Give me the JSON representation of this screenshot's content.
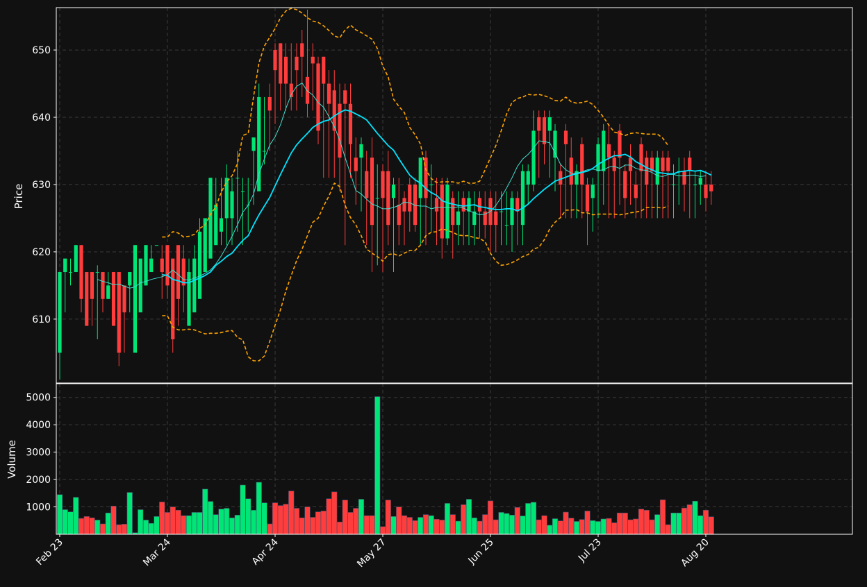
{
  "colors": {
    "background": "#111111",
    "frame": "#ffffff",
    "grid": "#3a3a3a",
    "up": "#00e676",
    "down": "#ff3d3d",
    "ma_fast": "#40e0d0",
    "ma_slow": "#00e5ff",
    "bands": "#ffa500",
    "text": "#ffffff"
  },
  "chart_data": {
    "type": "candlestick",
    "grid": true,
    "price_axis": {
      "label": "Price",
      "ticks": [
        610,
        620,
        630,
        640,
        650
      ],
      "ylim": [
        600.5,
        656.3
      ]
    },
    "volume_axis": {
      "label": "Volume",
      "ticks": [
        1000,
        2000,
        3000,
        4000,
        5000
      ],
      "ylim": [
        0,
        5500
      ]
    },
    "x_ticks": [
      {
        "label": "Feb 23",
        "index": 0
      },
      {
        "label": "Mar 24",
        "index": 20
      },
      {
        "label": "Apr 24",
        "index": 40
      },
      {
        "label": "May 27",
        "index": 60
      },
      {
        "label": "Jun 25",
        "index": 80
      },
      {
        "label": "Jul 23",
        "index": 100
      },
      {
        "label": "Aug 20",
        "index": 120
      }
    ],
    "candles": {
      "open": [
        605,
        617,
        617,
        617,
        621,
        617,
        617,
        617,
        617,
        613,
        617,
        617,
        615,
        615,
        605,
        611,
        615,
        617,
        621,
        619,
        621,
        619,
        621,
        619,
        609,
        611,
        613,
        617,
        619,
        621,
        623,
        625,
        625,
        631,
        629,
        627,
        635,
        629,
        635,
        643,
        650,
        651,
        649,
        645,
        649,
        651,
        646,
        649,
        648,
        649,
        645,
        644,
        642,
        644,
        642,
        634,
        634,
        632,
        634,
        628,
        632,
        632,
        628,
        627,
        628,
        630,
        630,
        628,
        634,
        630,
        628,
        630,
        622,
        628,
        624,
        628,
        626,
        624,
        628,
        626,
        628,
        626,
        626,
        624,
        624,
        628,
        624,
        630,
        630,
        640,
        640,
        638,
        634,
        632,
        638,
        634,
        630,
        636,
        630,
        628,
        632,
        632,
        636,
        634,
        638,
        632,
        634,
        630,
        636,
        634,
        634,
        630,
        634,
        634,
        630,
        632,
        632,
        634,
        630,
        630,
        630,
        630
      ],
      "close": [
        617,
        619,
        617,
        621,
        613,
        609,
        613,
        617,
        613,
        615,
        609,
        605,
        611,
        617,
        621,
        619,
        621,
        619,
        621,
        617,
        615,
        607,
        613,
        615,
        617,
        619,
        623,
        625,
        631,
        627,
        625,
        631,
        629,
        631,
        629,
        627,
        637,
        643,
        635,
        641,
        647,
        645,
        645,
        643,
        647,
        649,
        642,
        648,
        638,
        645,
        642,
        638,
        634,
        642,
        636,
        632,
        636,
        628,
        624,
        628,
        628,
        624,
        630,
        624,
        626,
        626,
        624,
        634,
        628,
        630,
        626,
        622,
        630,
        624,
        626,
        626,
        628,
        626,
        626,
        624,
        624,
        624,
        626,
        624,
        628,
        626,
        632,
        632,
        638,
        638,
        636,
        640,
        638,
        630,
        636,
        630,
        632,
        630,
        626,
        630,
        636,
        638,
        634,
        632,
        634,
        628,
        632,
        628,
        632,
        630,
        632,
        634,
        632,
        632,
        630,
        632,
        630,
        632,
        630,
        631,
        628,
        629
      ],
      "high": [
        617,
        619,
        619,
        621,
        621,
        617,
        617,
        618,
        617,
        617,
        617,
        617,
        615,
        617,
        621,
        619,
        621,
        621,
        621,
        621,
        621,
        619,
        621,
        621,
        619,
        621,
        625,
        625,
        631,
        631,
        631,
        633,
        631,
        635,
        631,
        631,
        637,
        645,
        643,
        645,
        651,
        651,
        651,
        651,
        651,
        653,
        656,
        651,
        649,
        649,
        647,
        647,
        645,
        645,
        645,
        637,
        637,
        635,
        637,
        633,
        633,
        635,
        631,
        631,
        629,
        631,
        631,
        631,
        635,
        633,
        631,
        631,
        631,
        629,
        629,
        629,
        629,
        629,
        629,
        629,
        629,
        629,
        629,
        629,
        629,
        629,
        633,
        633,
        641,
        641,
        641,
        641,
        639,
        633,
        639,
        637,
        633,
        637,
        631,
        631,
        637,
        639,
        639,
        635,
        639,
        633,
        636,
        632,
        637,
        635,
        635,
        635,
        635,
        635,
        633,
        634,
        634,
        635,
        632,
        632,
        632,
        632
      ],
      "low": [
        601,
        611,
        615,
        617,
        611,
        609,
        609,
        607,
        611,
        613,
        609,
        603,
        605,
        611,
        613,
        619,
        617,
        619,
        621,
        613,
        613,
        605,
        609,
        611,
        613,
        615,
        617,
        623,
        623,
        625,
        621,
        621,
        621,
        623,
        621,
        623,
        627,
        633,
        633,
        635,
        639,
        641,
        641,
        641,
        641,
        643,
        640,
        641,
        636,
        631,
        631,
        631,
        629,
        621,
        631,
        627,
        626,
        621,
        617,
        618,
        617,
        621,
        617,
        621,
        621,
        623,
        623,
        621,
        621,
        623,
        621,
        619,
        621,
        619,
        621,
        621,
        621,
        621,
        622,
        622,
        620,
        620,
        621,
        621,
        620,
        621,
        621,
        627,
        629,
        631,
        633,
        631,
        629,
        625,
        625,
        625,
        625,
        625,
        621,
        623,
        625,
        627,
        625,
        625,
        627,
        625,
        627,
        625,
        625,
        625,
        625,
        625,
        625,
        625,
        625,
        627,
        626,
        625,
        625,
        627,
        626,
        627
      ],
      "volume": [
        1450,
        900,
        820,
        1350,
        580,
        650,
        600,
        520,
        380,
        780,
        1030,
        350,
        370,
        1530,
        60,
        900,
        520,
        400,
        650,
        1180,
        800,
        1000,
        880,
        680,
        680,
        800,
        800,
        1650,
        1200,
        720,
        920,
        950,
        600,
        700,
        1800,
        1300,
        880,
        1900,
        1150,
        380,
        1150,
        1050,
        1100,
        1580,
        950,
        600,
        1000,
        620,
        820,
        850,
        1300,
        1550,
        450,
        1250,
        800,
        950,
        1280,
        680,
        680,
        5030,
        280,
        1250,
        650,
        1000,
        680,
        620,
        500,
        620,
        720,
        680,
        550,
        520,
        1130,
        720,
        480,
        1080,
        1280,
        600,
        480,
        720,
        1220,
        530,
        800,
        760,
        700,
        980,
        670,
        1130,
        1170,
        530,
        680,
        330,
        570,
        490,
        810,
        590,
        470,
        540,
        850,
        500,
        470,
        560,
        580,
        420,
        780,
        780,
        530,
        560,
        920,
        880,
        530,
        720,
        1260,
        350,
        780,
        780,
        960,
        1080,
        1210,
        680,
        880,
        640
      ]
    },
    "ma_fast": {
      "start": 7,
      "values": [
        615.9,
        615.6,
        615.4,
        615.1,
        615.2,
        614.9,
        614.6,
        614.8,
        615.4,
        615.6,
        615.9,
        616.1,
        616.3,
        616.6,
        617.3,
        616.6,
        615.9,
        615.8,
        616.1,
        616.4,
        616.8,
        617.3,
        618.2,
        619.4,
        620.8,
        622.3,
        624.0,
        625.9,
        626.9,
        628.6,
        631.6,
        633.8,
        635.9,
        637.1,
        638.9,
        641.3,
        643.4,
        644.6,
        645.1,
        643.9,
        643.3,
        642.2,
        641.5,
        640.1,
        638.6,
        636.6,
        634.0,
        631.6,
        629.1,
        628.6,
        627.8,
        627.1,
        626.8,
        626.4,
        626.4,
        626.6,
        626.9,
        627.4,
        627.3,
        626.9,
        626.8,
        626.8,
        626.4,
        626.6,
        626.6,
        626.6,
        626.5,
        626.7,
        626.5,
        626.1,
        625.8,
        625.5,
        625.6,
        626.0,
        626.9,
        628.1,
        629.5,
        631.0,
        632.7,
        633.8,
        634.5,
        635.4,
        636.5,
        636.4,
        636.2,
        634.7,
        633.0,
        632.2,
        631.7,
        631.7,
        631.9,
        632.2,
        632.3,
        632.1,
        632.2,
        632.6,
        632.7,
        632.4,
        632.9,
        632.9,
        632.4,
        632.2,
        632.1,
        631.8,
        631.3,
        631.2,
        631.5,
        631.5,
        631.3,
        631.3,
        631.4,
        631.4,
        631.2,
        631.3
      ]
    },
    "ma_slow": {
      "start": 19,
      "values": [
        616.6,
        616.5,
        615.9,
        615.7,
        615.4,
        615.4,
        615.8,
        616.1,
        616.5,
        617.0,
        618.0,
        618.6,
        619.3,
        619.8,
        620.8,
        621.7,
        622.4,
        624.0,
        625.5,
        626.8,
        628.1,
        629.8,
        631.5,
        633.1,
        634.7,
        635.9,
        636.8,
        637.6,
        638.5,
        639.0,
        639.4,
        639.6,
        640.2,
        640.7,
        641.1,
        640.9,
        640.5,
        640.1,
        639.6,
        638.6,
        637.6,
        636.7,
        635.8,
        635.1,
        633.8,
        632.6,
        631.4,
        630.7,
        630.2,
        629.4,
        628.8,
        628.4,
        627.6,
        627.3,
        627.1,
        626.9,
        626.8,
        626.9,
        627.0,
        626.7,
        626.6,
        626.4,
        626.3,
        626.3,
        626.4,
        626.4,
        626.1,
        626.5,
        627.1,
        627.9,
        628.6,
        629.3,
        629.9,
        630.5,
        630.8,
        631.1,
        631.4,
        631.6,
        631.8,
        632.0,
        632.4,
        633.0,
        633.5,
        633.9,
        634.3,
        634.3,
        634.5,
        634.1,
        633.4,
        633.0,
        632.5,
        632.2,
        631.8,
        631.7,
        631.6,
        631.6,
        631.9,
        632.0,
        632.1,
        632.0,
        632.1,
        631.8,
        631.4
      ]
    },
    "band_upper": {
      "start": 19,
      "values": [
        622.2,
        622.2,
        623.0,
        622.8,
        622.2,
        622.3,
        622.6,
        623.5,
        624.0,
        625.6,
        626.7,
        628.9,
        630.4,
        631.3,
        633.1,
        637.3,
        637.6,
        643.1,
        648.1,
        650.6,
        651.9,
        653.2,
        654.8,
        655.8,
        656.2,
        656.0,
        655.5,
        654.8,
        654.3,
        654.1,
        653.6,
        652.9,
        652.1,
        651.8,
        653.0,
        653.7,
        653.0,
        652.6,
        652.1,
        651.6,
        650.2,
        647.6,
        646.0,
        642.7,
        641.6,
        640.7,
        638.5,
        637.4,
        636.0,
        632.2,
        630.9,
        630.3,
        630.4,
        630.4,
        630.4,
        630.2,
        630.5,
        630.2,
        630.2,
        630.5,
        632.2,
        634.0,
        635.8,
        638.0,
        640.5,
        642.2,
        642.8,
        643.0,
        643.4,
        643.3,
        643.4,
        643.2,
        642.9,
        642.5,
        642.4,
        643.0,
        642.3,
        642.1,
        642.2,
        642.4,
        641.9,
        641.0,
        640.0,
        638.8,
        637.8,
        637.6,
        637.3,
        637.6,
        637.7,
        637.6,
        637.5,
        637.5,
        637.5,
        636.9,
        635.8
      ]
    },
    "band_lower": {
      "start": 19,
      "values": [
        610.5,
        610.5,
        608.8,
        608.4,
        608.4,
        608.5,
        608.4,
        608.1,
        607.8,
        607.9,
        607.9,
        608.0,
        608.2,
        608.3,
        607.3,
        606.9,
        604.4,
        603.8,
        603.8,
        604.5,
        606.7,
        609.1,
        611.4,
        614.2,
        616.5,
        618.7,
        620.4,
        622.4,
        624.4,
        625.0,
        626.8,
        628.3,
        630.2,
        629.7,
        626.9,
        625.1,
        624.0,
        622.4,
        620.4,
        619.8,
        619.3,
        618.6,
        619.6,
        619.7,
        619.4,
        619.8,
        620.2,
        620.2,
        621.0,
        622.4,
        622.9,
        623.0,
        623.4,
        623.2,
        622.9,
        622.5,
        622.4,
        622.4,
        622.1,
        622.0,
        621.5,
        619.8,
        618.6,
        618.0,
        618.1,
        618.4,
        618.8,
        619.3,
        619.6,
        620.4,
        620.7,
        621.8,
        623.4,
        624.4,
        625.1,
        626.2,
        626.2,
        626.3,
        625.8,
        625.8,
        625.5,
        625.6,
        625.6,
        625.6,
        625.6,
        625.5,
        625.6,
        625.8,
        625.9,
        626.1,
        626.6,
        626.6,
        626.6,
        626.5,
        626.8
      ]
    },
    "bar_count": 122
  }
}
